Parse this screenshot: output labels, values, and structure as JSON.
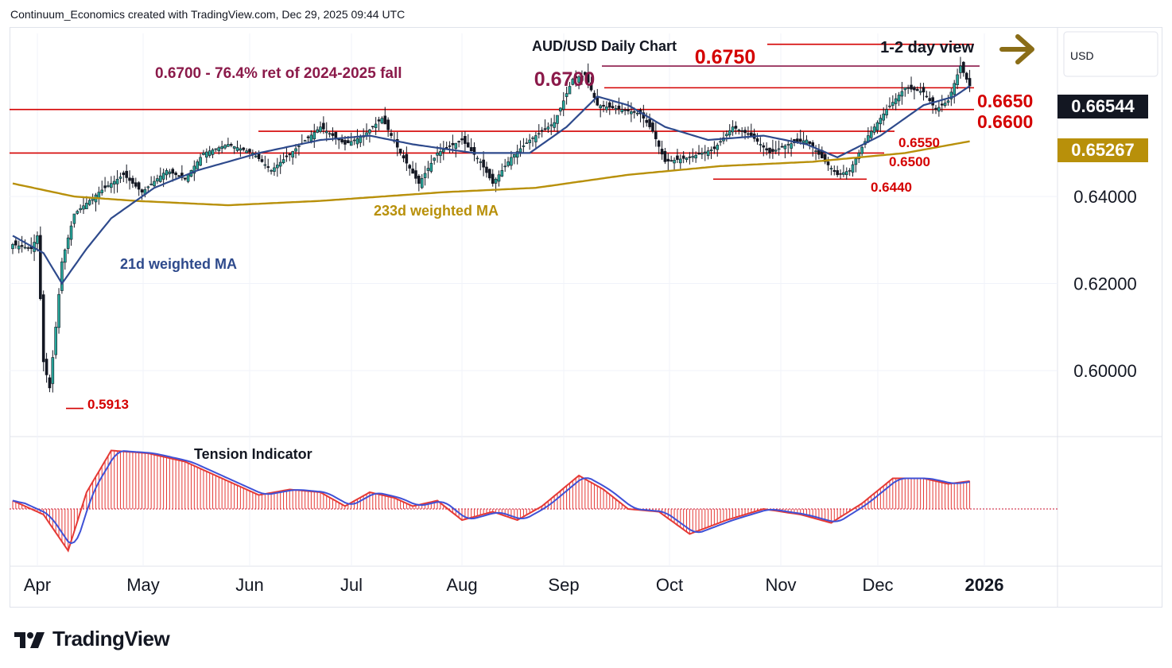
{
  "header": {
    "attribution": "Continuum_Economics created with TradingView.com, Dec 29, 2025 09:44 UTC"
  },
  "currency": "USD",
  "price_tags": [
    {
      "value": "0.66544",
      "color": "#131722"
    },
    {
      "value": "0.65267",
      "color": "#b8900a"
    }
  ],
  "logo": {
    "name": "TradingView"
  },
  "colors": {
    "candle_up": "#26a69a",
    "candle_down": "#131722",
    "ma21": "#2e4a8c",
    "ma233": "#b8900a",
    "level": "#d40000",
    "note": "#8b1a4a",
    "arrow": "#8a6d17"
  },
  "chart_data": [
    {
      "type": "candlestick",
      "title": "AUD/USD Daily Chart",
      "view": "1-2 day view",
      "x_tick_labels": [
        "Apr",
        "May",
        "Jun",
        "Jul",
        "Aug",
        "Sep",
        "Oct",
        "Nov",
        "Dec",
        "2026"
      ],
      "y_tick_labels": [
        "0.64000",
        "0.62000",
        "0.60000"
      ],
      "ylim": [
        0.585,
        0.6775
      ],
      "annotations": {
        "fib_note": "0.6700 - 76.4% ret of 2024-2025 fall",
        "ma21_label": "21d weighted MA",
        "ma233_label": "233d weighted MA"
      },
      "levels": [
        {
          "label": "0.6750",
          "value": 0.675
        },
        {
          "label": "0.6700",
          "value": 0.67
        },
        {
          "label": "0.6650",
          "value": 0.665
        },
        {
          "label": "0.6600",
          "value": 0.66
        },
        {
          "label": "0.6550",
          "value": 0.655
        },
        {
          "label": "0.6500",
          "value": 0.65
        },
        {
          "label": "0.6440",
          "value": 0.644
        },
        {
          "label": "0.5913",
          "value": 0.5913
        }
      ],
      "close_keypoints": [
        [
          0,
          0.629
        ],
        [
          6,
          0.628
        ],
        [
          8,
          0.631
        ],
        [
          10,
          0.602
        ],
        [
          12,
          0.596
        ],
        [
          14,
          0.61
        ],
        [
          16,
          0.625
        ],
        [
          20,
          0.636
        ],
        [
          28,
          0.641
        ],
        [
          36,
          0.645
        ],
        [
          42,
          0.641
        ],
        [
          50,
          0.646
        ],
        [
          56,
          0.644
        ],
        [
          62,
          0.65
        ],
        [
          70,
          0.652
        ],
        [
          78,
          0.65
        ],
        [
          84,
          0.646
        ],
        [
          92,
          0.651
        ],
        [
          100,
          0.656
        ],
        [
          108,
          0.652
        ],
        [
          114,
          0.654
        ],
        [
          120,
          0.658
        ],
        [
          126,
          0.65
        ],
        [
          132,
          0.643
        ],
        [
          138,
          0.65
        ],
        [
          146,
          0.653
        ],
        [
          152,
          0.648
        ],
        [
          156,
          0.643
        ],
        [
          162,
          0.649
        ],
        [
          168,
          0.653
        ],
        [
          176,
          0.657
        ],
        [
          182,
          0.667
        ],
        [
          186,
          0.668
        ],
        [
          190,
          0.661
        ],
        [
          198,
          0.66
        ],
        [
          204,
          0.659
        ],
        [
          208,
          0.655
        ],
        [
          212,
          0.648
        ],
        [
          220,
          0.649
        ],
        [
          228,
          0.651
        ],
        [
          234,
          0.656
        ],
        [
          240,
          0.654
        ],
        [
          246,
          0.65
        ],
        [
          252,
          0.652
        ],
        [
          258,
          0.653
        ],
        [
          264,
          0.648
        ],
        [
          268,
          0.645
        ],
        [
          272,
          0.646
        ],
        [
          278,
          0.654
        ],
        [
          284,
          0.66
        ],
        [
          290,
          0.665
        ],
        [
          296,
          0.664
        ],
        [
          300,
          0.66
        ],
        [
          304,
          0.662
        ],
        [
          308,
          0.67
        ],
        [
          311,
          0.6654
        ]
      ],
      "ma21_keypoints": [
        [
          0,
          0.631
        ],
        [
          10,
          0.627
        ],
        [
          16,
          0.62
        ],
        [
          24,
          0.628
        ],
        [
          32,
          0.635
        ],
        [
          46,
          0.642
        ],
        [
          60,
          0.646
        ],
        [
          80,
          0.65
        ],
        [
          100,
          0.653
        ],
        [
          116,
          0.654
        ],
        [
          130,
          0.652
        ],
        [
          150,
          0.65
        ],
        [
          168,
          0.65
        ],
        [
          180,
          0.656
        ],
        [
          190,
          0.663
        ],
        [
          200,
          0.661
        ],
        [
          212,
          0.656
        ],
        [
          226,
          0.653
        ],
        [
          244,
          0.654
        ],
        [
          258,
          0.652
        ],
        [
          268,
          0.649
        ],
        [
          282,
          0.654
        ],
        [
          296,
          0.661
        ],
        [
          306,
          0.663
        ],
        [
          311,
          0.6654
        ]
      ],
      "ma233_keypoints": [
        [
          0,
          0.643
        ],
        [
          20,
          0.64
        ],
        [
          40,
          0.639
        ],
        [
          70,
          0.638
        ],
        [
          100,
          0.639
        ],
        [
          140,
          0.641
        ],
        [
          170,
          0.642
        ],
        [
          200,
          0.645
        ],
        [
          230,
          0.647
        ],
        [
          260,
          0.648
        ],
        [
          290,
          0.65
        ],
        [
          311,
          0.6527
        ]
      ],
      "tension_indicator": {
        "title": "Tension Indicator",
        "keypoints": [
          [
            0,
            0.15
          ],
          [
            10,
            -0.1
          ],
          [
            18,
            -0.75
          ],
          [
            24,
            0.3
          ],
          [
            32,
            1.05
          ],
          [
            44,
            1.0
          ],
          [
            56,
            0.85
          ],
          [
            68,
            0.55
          ],
          [
            80,
            0.25
          ],
          [
            90,
            0.35
          ],
          [
            100,
            0.3
          ],
          [
            108,
            0.05
          ],
          [
            116,
            0.3
          ],
          [
            124,
            0.2
          ],
          [
            130,
            0.05
          ],
          [
            138,
            0.15
          ],
          [
            146,
            -0.2
          ],
          [
            156,
            -0.05
          ],
          [
            164,
            -0.2
          ],
          [
            172,
            0.05
          ],
          [
            184,
            0.6
          ],
          [
            192,
            0.35
          ],
          [
            200,
            0.0
          ],
          [
            210,
            -0.05
          ],
          [
            220,
            -0.45
          ],
          [
            232,
            -0.2
          ],
          [
            244,
            0.0
          ],
          [
            256,
            -0.1
          ],
          [
            266,
            -0.25
          ],
          [
            276,
            0.1
          ],
          [
            286,
            0.55
          ],
          [
            296,
            0.55
          ],
          [
            304,
            0.45
          ],
          [
            311,
            0.5
          ]
        ]
      }
    }
  ]
}
